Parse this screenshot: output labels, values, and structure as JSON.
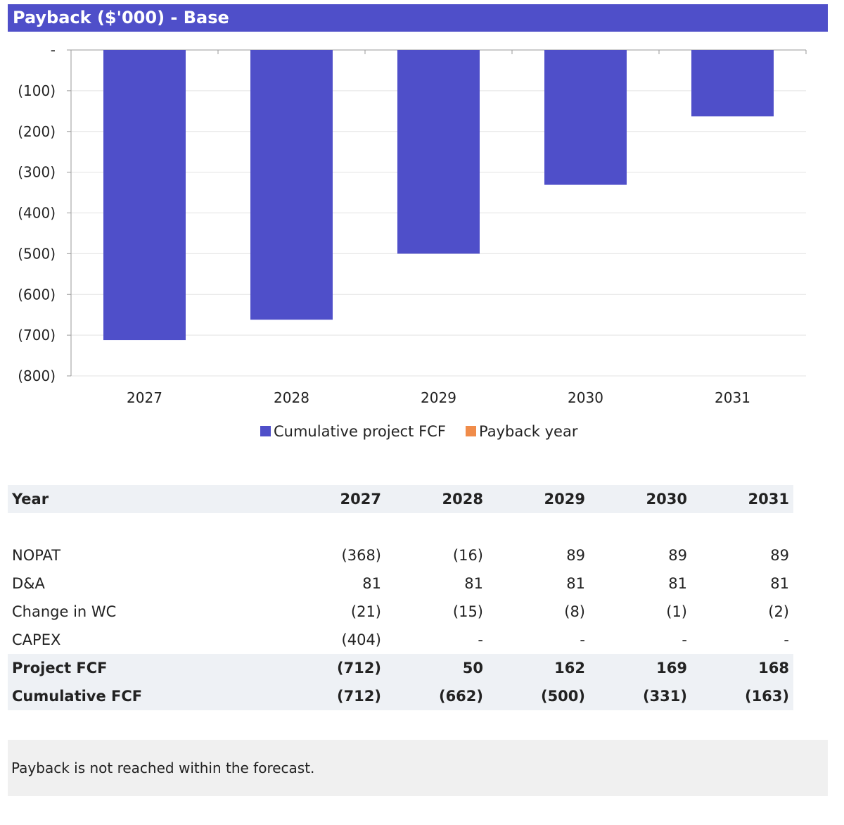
{
  "title": "Payback ($'000) - Base",
  "chart_data": {
    "type": "bar",
    "categories": [
      "2027",
      "2028",
      "2029",
      "2030",
      "2031"
    ],
    "series": [
      {
        "name": "Cumulative project FCF",
        "values": [
          -712,
          -662,
          -500,
          -331,
          -163
        ],
        "color": "#4f4fc9"
      },
      {
        "name": "Payback year",
        "values": [
          0,
          0,
          0,
          0,
          0
        ],
        "color": "#f08c4a"
      }
    ],
    "ylim": [
      -800,
      0
    ],
    "yticks": [
      0,
      -100,
      -200,
      -300,
      -400,
      -500,
      -600,
      -700,
      -800
    ],
    "ytick_labels": [
      "-",
      "(100)",
      "(200)",
      "(300)",
      "(400)",
      "(500)",
      "(600)",
      "(700)",
      "(800)"
    ],
    "grid": true,
    "legend": "bottom"
  },
  "table": {
    "header": {
      "label": "Year",
      "values": [
        "2027",
        "2028",
        "2029",
        "2030",
        "2031"
      ]
    },
    "rows": [
      {
        "label": "NOPAT",
        "values": [
          "(368)",
          "(16)",
          "89",
          "89",
          "89"
        ]
      },
      {
        "label": "D&A",
        "values": [
          "81",
          "81",
          "81",
          "81",
          "81"
        ]
      },
      {
        "label": "Change in WC",
        "values": [
          "(21)",
          "(15)",
          "(8)",
          "(1)",
          "(2)"
        ]
      },
      {
        "label": "CAPEX",
        "values": [
          "(404)",
          "-",
          "-",
          "-",
          "-"
        ]
      }
    ],
    "totals": [
      {
        "label": "Project FCF",
        "values": [
          "(712)",
          "50",
          "162",
          "169",
          "168"
        ]
      },
      {
        "label": "Cumulative FCF",
        "values": [
          "(712)",
          "(662)",
          "(500)",
          "(331)",
          "(163)"
        ]
      }
    ]
  },
  "note": "Payback is not reached within the forecast."
}
